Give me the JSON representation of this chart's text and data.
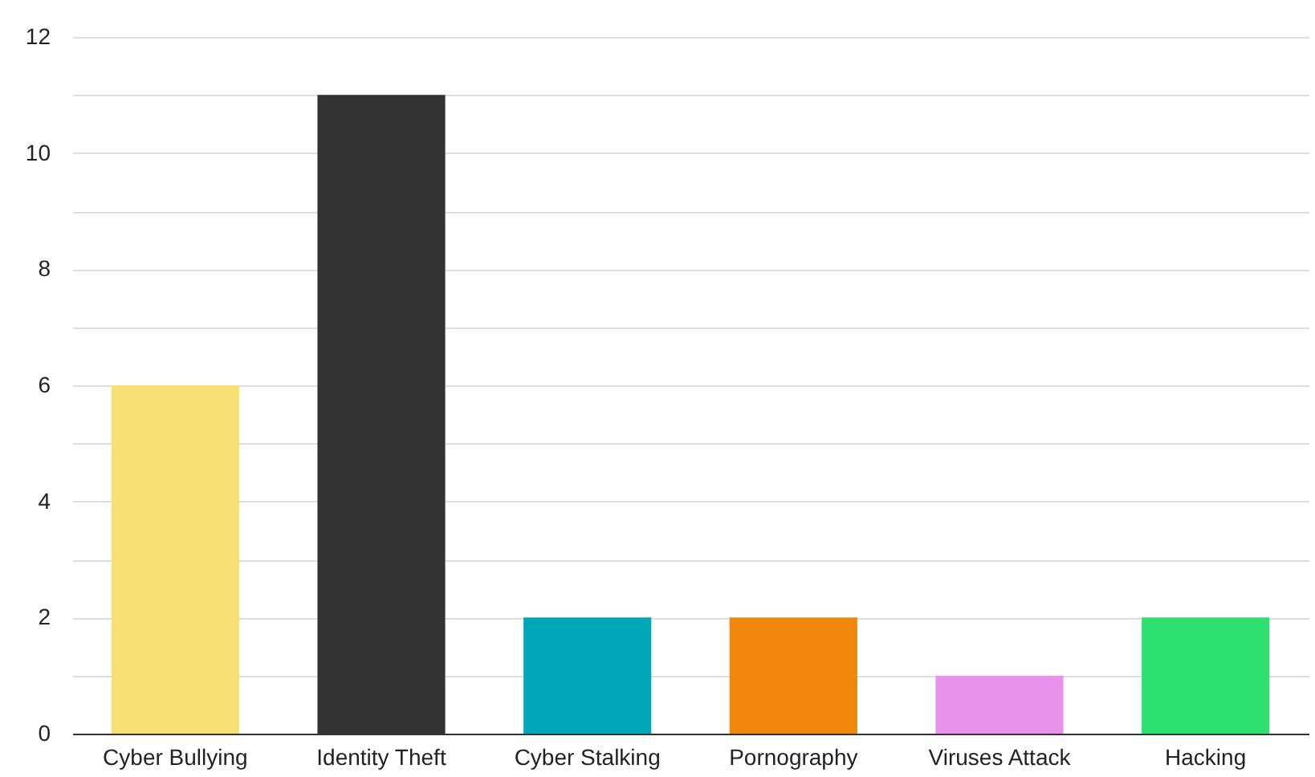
{
  "chart_data": {
    "type": "bar",
    "categories": [
      "Cyber Bullying",
      "Identity Theft",
      "Cyber Stalking",
      "Pornography",
      "Viruses Attack",
      "Hacking"
    ],
    "values": [
      6,
      11,
      2,
      2,
      1,
      2
    ],
    "colors": [
      "#f8df74",
      "#333333",
      "#00a7b8",
      "#f0860b",
      "#e892ec",
      "#2ee06f"
    ],
    "ylim": [
      0,
      12
    ],
    "yticks": [
      0,
      {
        "value": 1,
        "label": null
      },
      2,
      {
        "value": 3,
        "label": null
      },
      4,
      {
        "value": 5,
        "label": null
      },
      6,
      {
        "value": 7,
        "label": null
      },
      8,
      {
        "value": 9,
        "label": null
      },
      10,
      {
        "value": 11,
        "label": null
      },
      12
    ],
    "grid": "y"
  }
}
